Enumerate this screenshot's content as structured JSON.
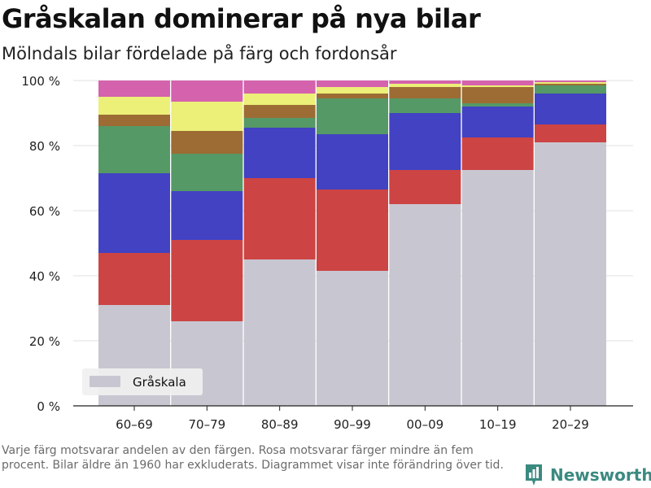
{
  "title": "Gråskalan dominerar på nya bilar",
  "subtitle": "Mölndals bilar fördelade på färg och fordonsår",
  "footnote": "Varje färg motsvarar andelen av den färgen. Rosa motsvarar färger mindre än fem procent. Bilar äldre än 1960 har exkluderats. Diagrammet visar inte förändring över tid.",
  "brand": {
    "name": "Newsworthy",
    "icon": "newsworthy-logo-icon",
    "color": "#3b8a80"
  },
  "chart_data": {
    "type": "bar",
    "stacked": true,
    "normalized": true,
    "categories": [
      "60–69",
      "70–79",
      "80–89",
      "90–99",
      "00–09",
      "10–19",
      "20–29"
    ],
    "y_ticks": [
      "0 %",
      "20 %",
      "40 %",
      "60 %",
      "80 %",
      "100 %"
    ],
    "ylim": [
      0,
      100
    ],
    "grid": true,
    "legend": {
      "position": "bottom-left",
      "entries": [
        "Gråskala"
      ]
    },
    "series": [
      {
        "name": "Gråskala",
        "color": "#c8c7d1",
        "values": [
          31,
          26,
          45,
          41.5,
          62,
          72.5,
          81
        ]
      },
      {
        "color": "#cc4444",
        "values": [
          16,
          25,
          25,
          25,
          10.5,
          10,
          5.5
        ]
      },
      {
        "color": "#4242c2",
        "values": [
          24.5,
          15,
          15.5,
          17,
          17.5,
          9.5,
          9.5
        ]
      },
      {
        "color": "#559966",
        "values": [
          14.5,
          11.5,
          3,
          11,
          4.5,
          1,
          2.5
        ]
      },
      {
        "color": "#9c6c34",
        "values": [
          3.5,
          7,
          4,
          1.5,
          3.5,
          5,
          0.5
        ]
      },
      {
        "color": "#ecef78",
        "values": [
          5.5,
          9,
          3.5,
          2,
          1,
          0.5,
          0.5
        ]
      },
      {
        "color": "#d462ad",
        "values": [
          5,
          6.5,
          4,
          2,
          1,
          1.5,
          0.5
        ]
      }
    ]
  }
}
